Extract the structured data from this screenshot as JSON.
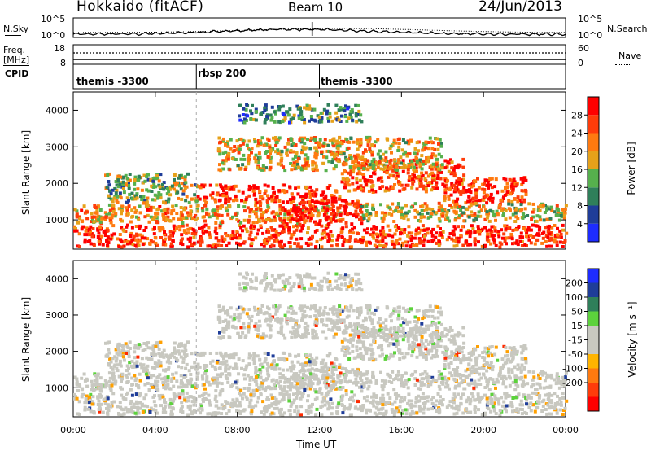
{
  "header": {
    "title": "Hokkaido (fitACF)",
    "beam": "Beam 10",
    "date": "24/Jun/2013"
  },
  "top_panels": {
    "nsky_label": "N.Sky",
    "nsky_ticks": [
      "10^5",
      "10^0"
    ],
    "nsearch_label": "N.Search",
    "freq_label_1": "Freq.",
    "freq_label_2": "[MHz]",
    "freq_ticks": [
      "18",
      "8"
    ],
    "nave_label": "Nave",
    "nave_ticks": [
      "60",
      "0"
    ],
    "cpid_label": "CPID",
    "cpid_segments": [
      "themis -3300",
      "rbsp 200",
      "themis -3300"
    ]
  },
  "colors": {
    "power_scale": [
      "#1e2cff",
      "#1f3d99",
      "#2f7f5a",
      "#56b04d",
      "#e6a11a",
      "#ff7a10",
      "#ff3c0a",
      "#ff0000"
    ],
    "velocity_scale": [
      "#ff0000",
      "#ff3c0a",
      "#ff7a10",
      "#ffb400",
      "#c8c8c0",
      "#c8c8c0",
      "#5cd23c",
      "#2f7f5a",
      "#1f3d99",
      "#1e2cff"
    ]
  },
  "chart_data": [
    {
      "type": "heatmap",
      "name": "power",
      "ylabel": "Slant Range [km]",
      "ylim": [
        200,
        4500
      ],
      "yticks": [
        "4000",
        "3000",
        "2000",
        "1000"
      ],
      "xlim": [
        "00:00",
        "24:00"
      ],
      "colorbar_label": "Power [dB]",
      "colorbar_ticks": [
        "28",
        "24",
        "20",
        "16",
        "12",
        "8",
        "4"
      ],
      "bands": [
        {
          "x": [
            0,
            24
          ],
          "y": [
            300,
            900
          ],
          "level": "high"
        },
        {
          "x": [
            0,
            13
          ],
          "y": [
            1000,
            1400
          ],
          "level": "medium"
        },
        {
          "x": [
            6,
            13
          ],
          "y": [
            1500,
            2000
          ],
          "level": "high"
        },
        {
          "x": [
            13,
            19
          ],
          "y": [
            1800,
            2700
          ],
          "level": "high"
        },
        {
          "x": [
            7,
            18
          ],
          "y": [
            2400,
            3300
          ],
          "level": "medium"
        },
        {
          "x": [
            18,
            22
          ],
          "y": [
            1500,
            2200
          ],
          "level": "high"
        }
      ]
    },
    {
      "type": "heatmap",
      "name": "velocity",
      "ylabel": "Slant Range [km]",
      "ylim": [
        200,
        4500
      ],
      "yticks": [
        "4000",
        "3000",
        "2000",
        "1000"
      ],
      "xlabel": "Time UT",
      "xticks": [
        "00:00",
        "04:00",
        "08:00",
        "12:00",
        "16:00",
        "20:00",
        "00:00"
      ],
      "colorbar_label": "Velocity [m s⁻¹]",
      "colorbar_ticks": [
        "200",
        "100",
        "50",
        "15",
        "-15",
        "-50",
        "-100",
        "-200"
      ]
    }
  ]
}
